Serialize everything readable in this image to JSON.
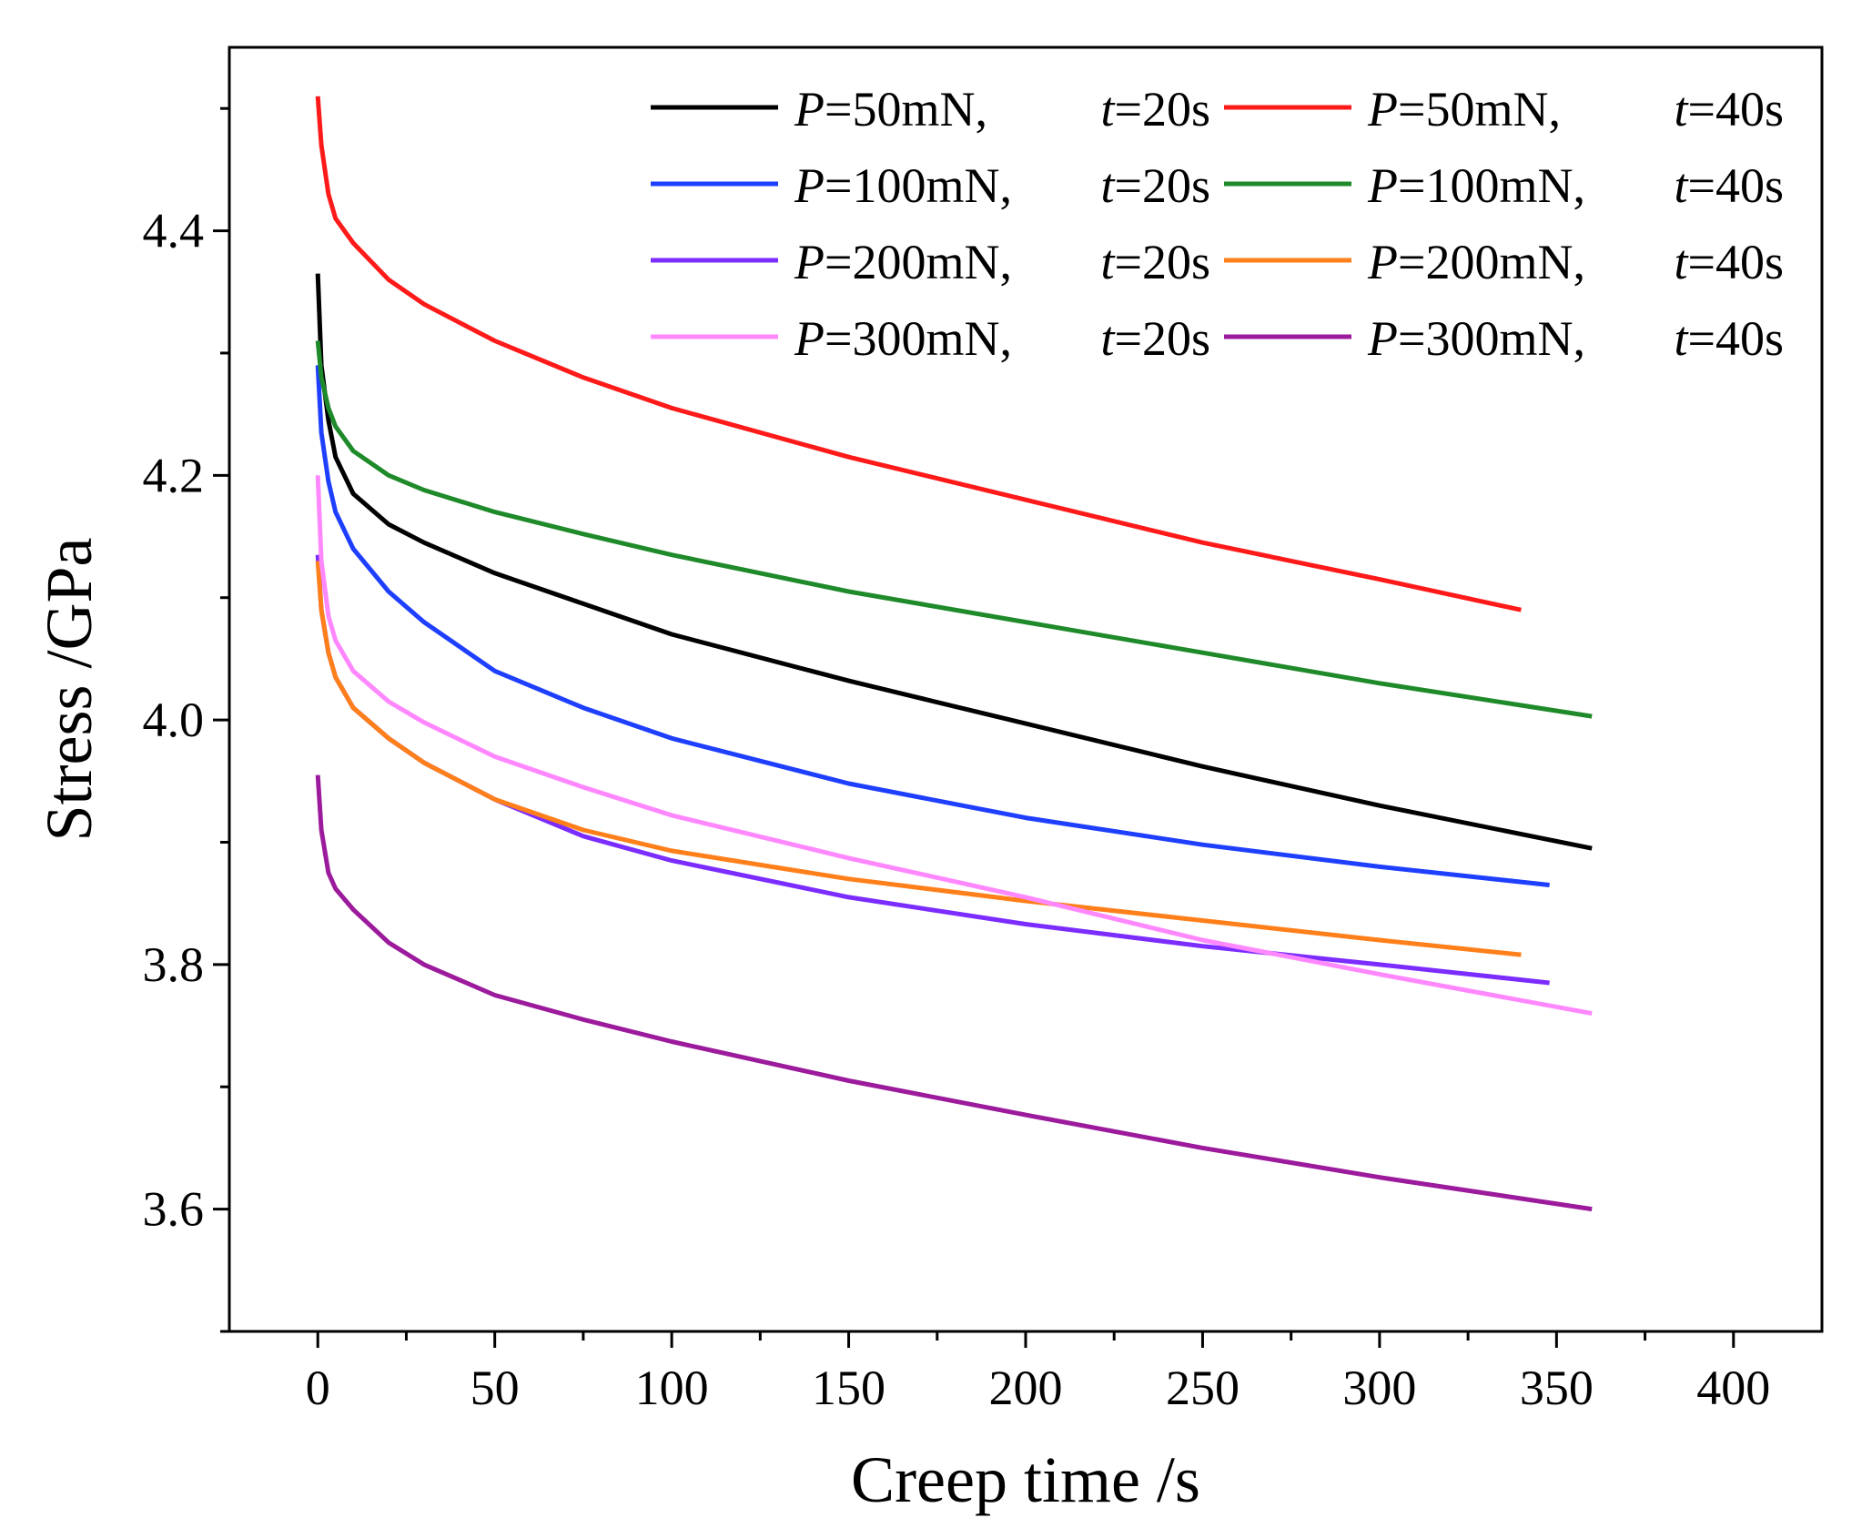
{
  "chart_data": {
    "type": "line",
    "xlabel": "Creep time /s",
    "ylabel": "Stress /GPa",
    "xlim": [
      -25,
      425
    ],
    "ylim": [
      3.5,
      4.55
    ],
    "xticks": [
      0,
      50,
      100,
      150,
      200,
      250,
      300,
      350,
      400
    ],
    "xtick_labels": [
      "0",
      "50",
      "100",
      "150",
      "200",
      "250",
      "300",
      "350",
      "400"
    ],
    "yticks": [
      3.6,
      3.8,
      4.0,
      4.2,
      4.4
    ],
    "ytick_labels": [
      "3.6",
      "3.8",
      "4.0",
      "4.2",
      "4.4"
    ],
    "grid": false,
    "legend_position": "top-right",
    "series": [
      {
        "name": "P=50mN,   t=20s",
        "P": "50mN,",
        "t": "20s",
        "color": "#000000",
        "x": [
          0,
          1,
          3,
          5,
          10,
          20,
          30,
          50,
          75,
          100,
          150,
          200,
          250,
          300,
          360
        ],
        "y": [
          4.365,
          4.29,
          4.245,
          4.215,
          4.185,
          4.16,
          4.145,
          4.12,
          4.095,
          4.07,
          4.032,
          3.997,
          3.962,
          3.93,
          3.895
        ]
      },
      {
        "name": "P=50mN,   t=40s",
        "P": "50mN,",
        "t": "40s",
        "color": "#ff1a1a",
        "x": [
          0,
          1,
          3,
          5,
          10,
          20,
          30,
          50,
          75,
          100,
          150,
          200,
          250,
          300,
          340
        ],
        "y": [
          4.51,
          4.47,
          4.43,
          4.41,
          4.39,
          4.36,
          4.34,
          4.31,
          4.28,
          4.255,
          4.215,
          4.18,
          4.145,
          4.115,
          4.09
        ]
      },
      {
        "name": "P=100mN, t=20s",
        "P": "100mN,",
        "t": "20s",
        "color": "#1f3fff",
        "x": [
          0,
          1,
          3,
          5,
          10,
          20,
          30,
          50,
          75,
          100,
          150,
          200,
          250,
          300,
          348
        ],
        "y": [
          4.29,
          4.235,
          4.195,
          4.17,
          4.14,
          4.105,
          4.08,
          4.04,
          4.01,
          3.985,
          3.948,
          3.92,
          3.898,
          3.88,
          3.865
        ]
      },
      {
        "name": "P=100mN, t=40s",
        "P": "100mN,",
        "t": "40s",
        "color": "#1f8a2a",
        "x": [
          0,
          1,
          3,
          5,
          10,
          20,
          30,
          50,
          75,
          100,
          150,
          200,
          250,
          300,
          360
        ],
        "y": [
          4.31,
          4.28,
          4.255,
          4.24,
          4.22,
          4.2,
          4.188,
          4.17,
          4.152,
          4.135,
          4.105,
          4.08,
          4.055,
          4.03,
          4.003
        ]
      },
      {
        "name": "P=200mN, t=20s",
        "P": "200mN,",
        "t": "20s",
        "color": "#7b2cff",
        "x": [
          0,
          1,
          3,
          5,
          10,
          20,
          30,
          50,
          75,
          100,
          150,
          200,
          250,
          300,
          348
        ],
        "y": [
          4.135,
          4.09,
          4.055,
          4.035,
          4.01,
          3.985,
          3.965,
          3.935,
          3.905,
          3.885,
          3.855,
          3.833,
          3.815,
          3.8,
          3.785
        ]
      },
      {
        "name": "P=200mN, t=40s",
        "P": "200mN,",
        "t": "40s",
        "color": "#ff7f1a",
        "x": [
          0,
          1,
          3,
          5,
          10,
          20,
          30,
          50,
          75,
          100,
          150,
          200,
          250,
          300,
          340
        ],
        "y": [
          4.13,
          4.09,
          4.055,
          4.035,
          4.01,
          3.985,
          3.965,
          3.935,
          3.91,
          3.893,
          3.87,
          3.852,
          3.836,
          3.82,
          3.808
        ]
      },
      {
        "name": "P=300mN, t=20s",
        "P": "300mN,",
        "t": "20s",
        "color": "#ff88ff",
        "x": [
          0,
          1,
          3,
          5,
          10,
          20,
          30,
          50,
          75,
          100,
          150,
          200,
          250,
          300,
          360
        ],
        "y": [
          4.2,
          4.13,
          4.085,
          4.065,
          4.04,
          4.015,
          3.998,
          3.97,
          3.945,
          3.922,
          3.887,
          3.855,
          3.82,
          3.792,
          3.76
        ]
      },
      {
        "name": "P=300mN, t=40s",
        "P": "300mN,",
        "t": "40s",
        "color": "#9c1a9c",
        "x": [
          0,
          1,
          3,
          5,
          10,
          20,
          30,
          50,
          75,
          100,
          150,
          200,
          250,
          300,
          360
        ],
        "y": [
          3.955,
          3.91,
          3.875,
          3.862,
          3.845,
          3.818,
          3.8,
          3.775,
          3.755,
          3.737,
          3.705,
          3.677,
          3.65,
          3.626,
          3.6
        ]
      }
    ]
  }
}
